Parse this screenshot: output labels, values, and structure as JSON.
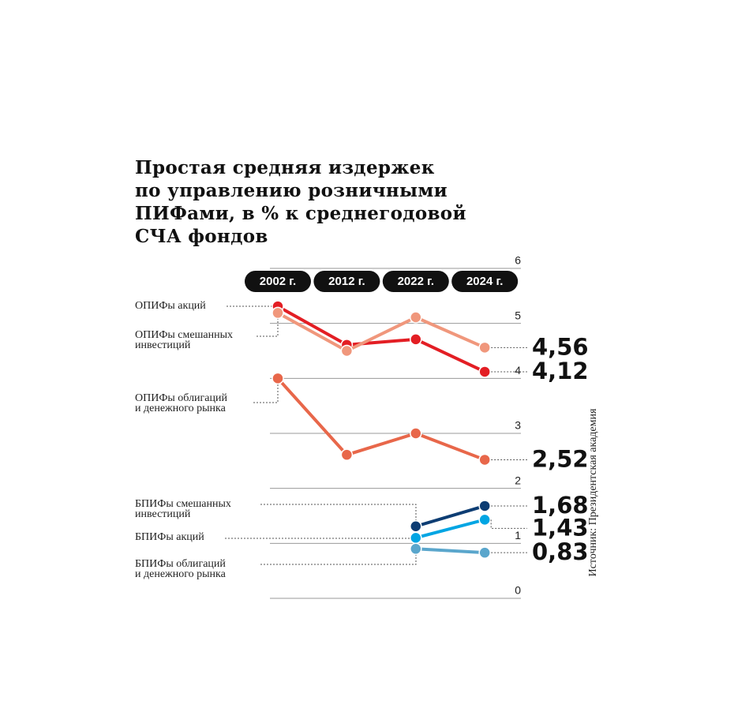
{
  "chart_data": {
    "type": "line",
    "title": "Простая средняя издержек\nпо управлению розничными\nПИФами, в % к среднегодовой\nСЧА фондов",
    "source": "Источник: Президентская академия",
    "categories": [
      "2002 г.",
      "2012 г.",
      "2022 г.",
      "2024 г."
    ],
    "ylim": [
      0,
      6
    ],
    "yticks": [
      0,
      1,
      2,
      3,
      4,
      5,
      6
    ],
    "grid": true,
    "series": [
      {
        "name": "ОПИФы акций",
        "color": "#e31e24",
        "values": [
          5.31,
          4.61,
          4.71,
          4.12
        ],
        "value_labels": [
          null,
          null,
          null,
          "4,12"
        ]
      },
      {
        "name": "ОПИФы смешанных\nинвестиций",
        "color": "#f0977c",
        "values": [
          5.19,
          4.5,
          5.11,
          4.56
        ],
        "value_labels": [
          null,
          null,
          null,
          "4,56"
        ]
      },
      {
        "name": "ОПИФы облигаций\nи денежного рынка",
        "color": "#e8674a",
        "values": [
          4.0,
          2.61,
          3.0,
          2.52
        ],
        "value_labels": [
          null,
          null,
          null,
          "2,52"
        ]
      },
      {
        "name": "БПИФы смешанных\nинвестиций",
        "color": "#0d3d73",
        "values": [
          null,
          null,
          1.31,
          1.68
        ],
        "value_labels": [
          null,
          null,
          null,
          "1,68"
        ]
      },
      {
        "name": "БПИФы акций",
        "color": "#00a5e3",
        "values": [
          null,
          null,
          1.1,
          1.43
        ],
        "value_labels": [
          null,
          null,
          null,
          "1,43"
        ]
      },
      {
        "name": "БПИФы облигаций\nи денежного рынка",
        "color": "#5aa6cc",
        "values": [
          null,
          null,
          0.9,
          0.83
        ],
        "value_labels": [
          null,
          null,
          null,
          "0,83"
        ]
      }
    ]
  }
}
